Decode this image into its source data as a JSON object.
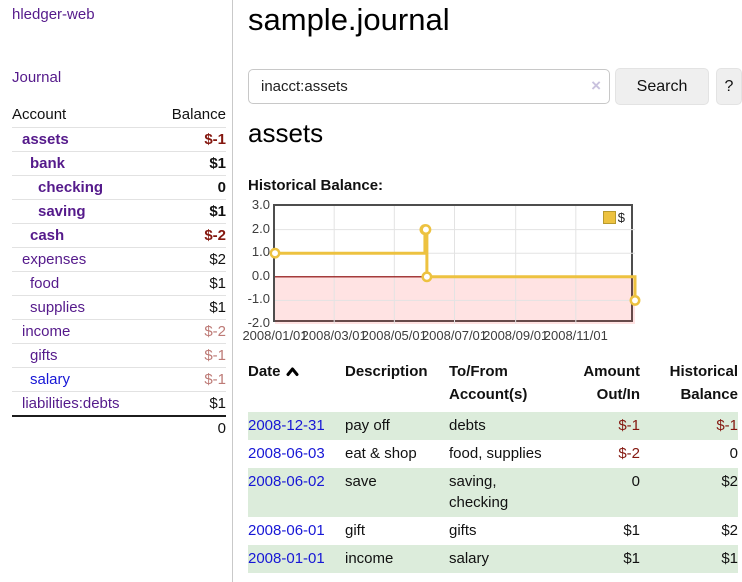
{
  "colors": {
    "link_purple": "#551a8b",
    "link_blue": "#1717d6",
    "negative_dark": "#84170f",
    "negative_light": "#bd7a76",
    "row_green": "#dcecdb",
    "chart_gold": "#edc240",
    "chart_negative_fill": "rgba(255,60,60,0.14)",
    "zero_line_red": "#8b0000"
  },
  "sidebar": {
    "app_title": "hledger-web",
    "journal_label": "Journal",
    "accounts_table": {
      "account_header": "Account",
      "balance_header": "Balance",
      "rows": [
        {
          "name": "assets",
          "balance": "$-1",
          "indent": 1,
          "bold": true,
          "name_color": "purple",
          "balance_color": "neg-dark"
        },
        {
          "name": "bank",
          "balance": "$1",
          "indent": 2,
          "bold": true,
          "name_color": "purple",
          "balance_color": "black"
        },
        {
          "name": "checking",
          "balance": "0",
          "indent": 3,
          "bold": true,
          "name_color": "purple",
          "balance_color": "black"
        },
        {
          "name": "saving",
          "balance": "$1",
          "indent": 3,
          "bold": true,
          "name_color": "purple",
          "balance_color": "black"
        },
        {
          "name": "cash",
          "balance": "$-2",
          "indent": 2,
          "bold": true,
          "name_color": "purple",
          "balance_color": "neg-dark"
        },
        {
          "name": "expenses",
          "balance": "$2",
          "indent": 1,
          "bold": false,
          "name_color": "purple",
          "balance_color": "black"
        },
        {
          "name": "food",
          "balance": "$1",
          "indent": 2,
          "bold": false,
          "name_color": "purple",
          "balance_color": "black"
        },
        {
          "name": "supplies",
          "balance": "$1",
          "indent": 2,
          "bold": false,
          "name_color": "purple",
          "balance_color": "black"
        },
        {
          "name": "income",
          "balance": "$-2",
          "indent": 1,
          "bold": false,
          "name_color": "purple",
          "balance_color": "neg-light"
        },
        {
          "name": "gifts",
          "balance": "$-1",
          "indent": 2,
          "bold": false,
          "name_color": "purple",
          "balance_color": "neg-light"
        },
        {
          "name": "salary",
          "balance": "$-1",
          "indent": 2,
          "bold": false,
          "name_color": "blue",
          "balance_color": "neg-light"
        },
        {
          "name": "liabilities:debts",
          "balance": "$1",
          "indent": 1,
          "bold": false,
          "name_color": "purple",
          "balance_color": "black"
        }
      ],
      "total": "0"
    }
  },
  "header": {
    "title": "sample.journal"
  },
  "search": {
    "value": "inacct:assets",
    "clear_icon": "×",
    "button_label": "Search",
    "help_label": "?"
  },
  "account_page": {
    "heading": "assets",
    "chart_label": "Historical Balance:"
  },
  "chart_data": {
    "type": "line",
    "step": true,
    "title": "Historical Balance",
    "legend_label": "$",
    "legend_position": "top-right",
    "series": [
      {
        "name": "$",
        "color": "#edc240",
        "points": [
          [
            "2008-01-01",
            1
          ],
          [
            "2008-06-01",
            2
          ],
          [
            "2008-06-02",
            2
          ],
          [
            "2008-06-03",
            0
          ],
          [
            "2008-12-31",
            -1
          ]
        ]
      }
    ],
    "xrange": [
      "2008-01-01",
      "2008-12-31"
    ],
    "ylim": [
      -2,
      3
    ],
    "yticks": [
      "3.0",
      "2.0",
      "1.0",
      "0.0",
      "-1.0",
      "-2.0"
    ],
    "xticks": [
      "2008/01/01",
      "2008/03/01",
      "2008/05/01",
      "2008/07/01",
      "2008/09/01",
      "2008/11/01"
    ],
    "grid": true,
    "negative_region_shaded": true
  },
  "register": {
    "headers": [
      "Date",
      "Description",
      "To/From Account(s)",
      "Amount Out/In",
      "Historical Balance"
    ],
    "rows": [
      {
        "date": "2008-12-31",
        "description": "pay off",
        "accounts": "debts",
        "amount": "$-1",
        "amount_negative": true,
        "balance": "$-1",
        "balance_negative": true,
        "shaded": true
      },
      {
        "date": "2008-06-03",
        "description": "eat & shop",
        "accounts": "food, supplies",
        "amount": "$-2",
        "amount_negative": true,
        "balance": "0",
        "balance_negative": false,
        "shaded": false
      },
      {
        "date": "2008-06-02",
        "description": "save",
        "accounts": "saving, checking",
        "amount": "0",
        "amount_negative": false,
        "balance": "$2",
        "balance_negative": false,
        "shaded": true
      },
      {
        "date": "2008-06-01",
        "description": "gift",
        "accounts": "gifts",
        "amount": "$1",
        "amount_negative": false,
        "balance": "$2",
        "balance_negative": false,
        "shaded": false
      },
      {
        "date": "2008-01-01",
        "description": "income",
        "accounts": "salary",
        "amount": "$1",
        "amount_negative": false,
        "balance": "$1",
        "balance_negative": false,
        "shaded": true
      }
    ]
  }
}
